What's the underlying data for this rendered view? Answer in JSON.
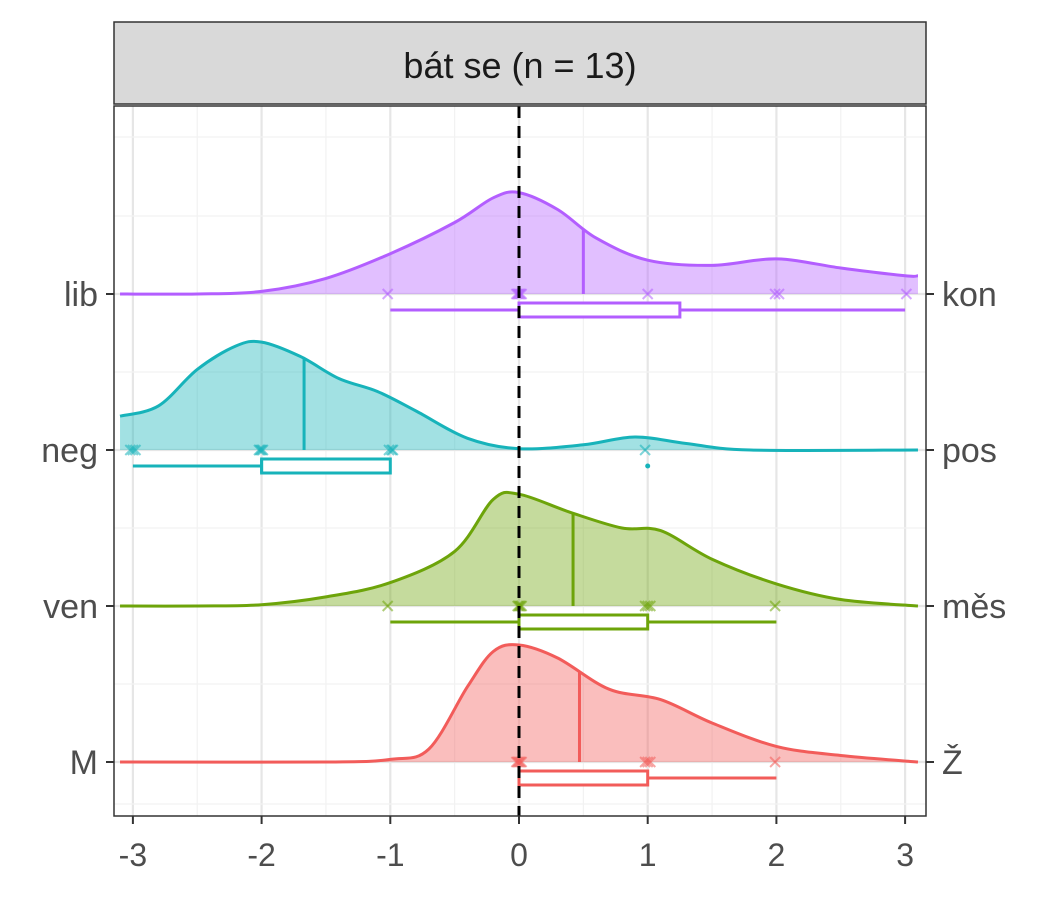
{
  "chart_data": {
    "type": "ridgeline",
    "title": "bát se (n = 13)",
    "xlim": [
      -3.1,
      3.1
    ],
    "x_ticks": [
      "-3",
      "-2",
      "-1",
      "0",
      "1",
      "2",
      "3"
    ],
    "reference_line_x": 0,
    "grid": true,
    "rows": [
      {
        "left_label": "lib",
        "right_label": "kon",
        "color": "#B35EFF",
        "points": [
          -1,
          0,
          0,
          0,
          0,
          0,
          1,
          2,
          2,
          3
        ],
        "box": {
          "min": -1,
          "q1": 0,
          "median": 0,
          "q3": 1.25,
          "max": 3
        },
        "mean": 0.5,
        "density": [
          [
            -3.1,
            0
          ],
          [
            -2.5,
            0
          ],
          [
            -2,
            0.02
          ],
          [
            -1.5,
            0.12
          ],
          [
            -1,
            0.31
          ],
          [
            -0.5,
            0.55
          ],
          [
            -0.2,
            0.74
          ],
          [
            0,
            0.78
          ],
          [
            0.3,
            0.65
          ],
          [
            0.6,
            0.43
          ],
          [
            1,
            0.26
          ],
          [
            1.5,
            0.22
          ],
          [
            2,
            0.27
          ],
          [
            2.5,
            0.2
          ],
          [
            3,
            0.14
          ],
          [
            3.1,
            0.14
          ]
        ]
      },
      {
        "left_label": "neg",
        "right_label": "pos",
        "color": "#17B3BA",
        "points": [
          -3,
          -3,
          -3,
          -2,
          -2,
          -2,
          -2,
          -1,
          -1,
          -1,
          1
        ],
        "outliers": [
          1
        ],
        "box": {
          "min": -3,
          "q1": -2,
          "median": -2,
          "q3": -1,
          "max": -1
        },
        "mean": -1.67,
        "density": [
          [
            -3.1,
            0.26
          ],
          [
            -2.8,
            0.34
          ],
          [
            -2.5,
            0.62
          ],
          [
            -2.2,
            0.8
          ],
          [
            -2,
            0.83
          ],
          [
            -1.7,
            0.72
          ],
          [
            -1.4,
            0.55
          ],
          [
            -1.1,
            0.45
          ],
          [
            -0.8,
            0.3
          ],
          [
            -0.4,
            0.09
          ],
          [
            0,
            0.01
          ],
          [
            0.5,
            0.04
          ],
          [
            0.9,
            0.1
          ],
          [
            1.3,
            0.05
          ],
          [
            1.8,
            0
          ],
          [
            3.1,
            0
          ]
        ]
      },
      {
        "left_label": "ven",
        "right_label": "měs",
        "color": "#6DA40A",
        "points": [
          -1,
          0,
          0,
          0,
          0,
          1,
          1,
          1,
          2
        ],
        "box": {
          "min": -1,
          "q1": 0,
          "median": 0,
          "q3": 1,
          "max": 2
        },
        "mean": 0.42,
        "density": [
          [
            -3.1,
            0
          ],
          [
            -2.5,
            0
          ],
          [
            -2,
            0.01
          ],
          [
            -1.5,
            0.07
          ],
          [
            -1,
            0.18
          ],
          [
            -0.5,
            0.42
          ],
          [
            -0.2,
            0.82
          ],
          [
            0,
            0.86
          ],
          [
            0.4,
            0.72
          ],
          [
            0.8,
            0.6
          ],
          [
            1.1,
            0.58
          ],
          [
            1.5,
            0.36
          ],
          [
            2,
            0.17
          ],
          [
            2.5,
            0.05
          ],
          [
            3.1,
            0
          ]
        ]
      },
      {
        "left_label": "M",
        "right_label": "Ž",
        "color": "#F25C5A",
        "points": [
          0,
          0,
          0,
          0,
          0,
          1,
          1,
          1,
          2
        ],
        "box": {
          "min": 0,
          "q1": 0,
          "median": 0,
          "q3": 1,
          "max": 2
        },
        "mean": 0.47,
        "density": [
          [
            -3.1,
            0
          ],
          [
            -1.5,
            0
          ],
          [
            -1,
            0.02
          ],
          [
            -0.7,
            0.1
          ],
          [
            -0.4,
            0.58
          ],
          [
            -0.2,
            0.85
          ],
          [
            0,
            0.9
          ],
          [
            0.3,
            0.8
          ],
          [
            0.7,
            0.56
          ],
          [
            1.1,
            0.48
          ],
          [
            1.5,
            0.3
          ],
          [
            2,
            0.12
          ],
          [
            2.5,
            0.05
          ],
          [
            3.1,
            0
          ]
        ]
      }
    ]
  }
}
